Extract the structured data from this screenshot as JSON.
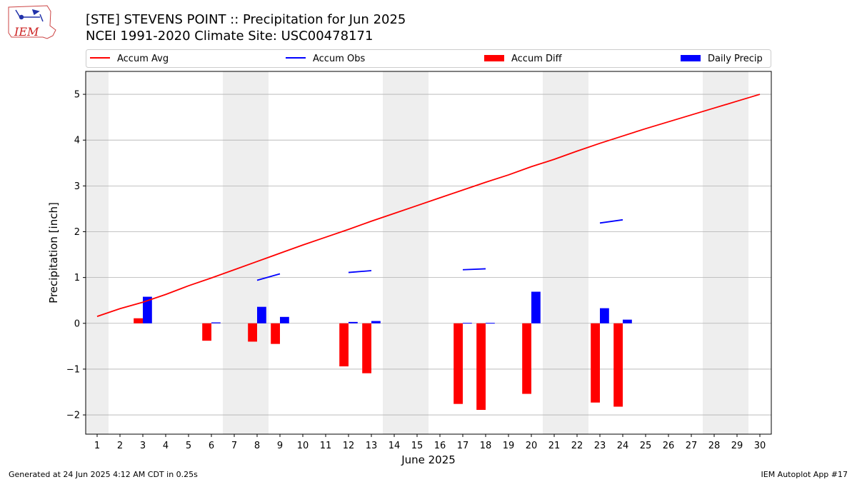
{
  "header": {
    "title_line1": "[STE] STEVENS POINT :: Precipitation for Jun 2025",
    "title_line2": "NCEI 1991-2020 Climate Site: USC00478171",
    "logo_text": "IEM"
  },
  "footer": {
    "generated": "Generated at 24 Jun 2025 4:12 AM CDT in 0.25s",
    "app": "IEM Autoplot App #17"
  },
  "colors": {
    "accum_avg": "#ff0000",
    "accum_obs": "#0000ff",
    "accum_diff": "#ff0000",
    "daily_precip": "#0000ff",
    "weekend_shade": "#eeeeee",
    "grid": "#b0b0b0"
  },
  "chart_data": {
    "type": "bar",
    "xlabel": "June 2025",
    "ylabel": "Precipitation [inch]",
    "ylim": [
      -2.42,
      5.5
    ],
    "yticks": [
      -2,
      -1,
      0,
      1,
      2,
      3,
      4,
      5
    ],
    "ytick_labels": [
      "−2",
      "−1",
      "0",
      "1",
      "2",
      "3",
      "4",
      "5"
    ],
    "xlim": [
      0.5,
      30.5
    ],
    "days": [
      1,
      2,
      3,
      4,
      5,
      6,
      7,
      8,
      9,
      10,
      11,
      12,
      13,
      14,
      15,
      16,
      17,
      18,
      19,
      20,
      21,
      22,
      23,
      24,
      25,
      26,
      27,
      28,
      29,
      30
    ],
    "grid": "y",
    "legend_placement": "top",
    "weekend_shading": [
      [
        0.5,
        1.5
      ],
      [
        6.5,
        8.5
      ],
      [
        13.5,
        15.5
      ],
      [
        20.5,
        22.5
      ],
      [
        27.5,
        29.5
      ]
    ],
    "series": [
      {
        "name": "Accum Avg",
        "kind": "line",
        "x": [
          1,
          2,
          3,
          4,
          5,
          6,
          7,
          8,
          9,
          10,
          11,
          12,
          13,
          14,
          15,
          16,
          17,
          18,
          19,
          20,
          21,
          22,
          23,
          24,
          25,
          26,
          27,
          28,
          29,
          30
        ],
        "values": [
          0.15,
          0.32,
          0.46,
          0.63,
          0.82,
          0.99,
          1.17,
          1.35,
          1.53,
          1.71,
          1.88,
          2.05,
          2.23,
          2.4,
          2.57,
          2.74,
          2.91,
          3.08,
          3.24,
          3.42,
          3.58,
          3.76,
          3.93,
          4.09,
          4.25,
          4.4,
          4.55,
          4.7,
          4.85,
          5.0
        ]
      },
      {
        "name": "Accum Obs",
        "kind": "line_segments",
        "segments": [
          {
            "x": [
              8,
              9
            ],
            "values": [
              0.94,
              1.08
            ]
          },
          {
            "x": [
              12,
              13
            ],
            "values": [
              1.11,
              1.15
            ]
          },
          {
            "x": [
              17,
              18
            ],
            "values": [
              1.17,
              1.19
            ]
          },
          {
            "x": [
              23,
              24
            ],
            "values": [
              2.19,
              2.26
            ]
          }
        ]
      },
      {
        "name": "Accum Diff",
        "kind": "bar",
        "x": [
          3,
          6,
          8,
          9,
          12,
          13,
          17,
          18,
          20,
          23,
          24
        ],
        "values": [
          0.11,
          -0.38,
          -0.4,
          -0.45,
          -0.94,
          -1.09,
          -1.76,
          -1.89,
          -1.54,
          -1.73,
          -1.82
        ]
      },
      {
        "name": "Daily Precip",
        "kind": "bar",
        "x": [
          3,
          6,
          8,
          9,
          12,
          13,
          17,
          18,
          20,
          23,
          24
        ],
        "values": [
          0.58,
          0.02,
          0.36,
          0.14,
          0.03,
          0.05,
          0.01,
          0.01,
          0.69,
          0.33,
          0.08
        ]
      }
    ]
  }
}
